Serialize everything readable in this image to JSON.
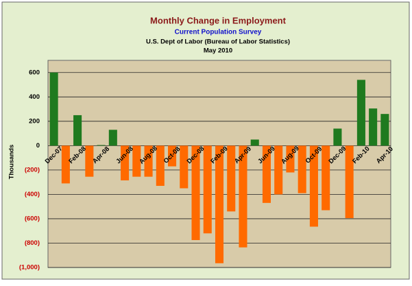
{
  "chart_data": {
    "type": "bar",
    "title": "Monthly Change in Employment",
    "subtitles": [
      "Current Population Survey",
      "U.S. Dept of Labor (Bureau of Labor Statistics)",
      "May 2010"
    ],
    "y_label": "Thousands",
    "categories": [
      "Dec-07",
      null,
      "Feb-08",
      null,
      "Apr-08",
      null,
      "Jun-08",
      null,
      "Aug-08",
      null,
      "Oct-08",
      null,
      "Dec-08",
      null,
      "Feb-09",
      null,
      "Apr-09",
      null,
      "Jun-09",
      null,
      "Aug-09",
      null,
      "Oct-09",
      null,
      "Dec-09",
      null,
      "Feb-10",
      null,
      "Apr-10"
    ],
    "values": [
      600,
      -310,
      250,
      -255,
      5,
      130,
      -285,
      -255,
      -255,
      -330,
      -170,
      -350,
      -775,
      -720,
      -965,
      -540,
      -835,
      50,
      -470,
      -400,
      -220,
      -390,
      -665,
      -530,
      140,
      -595,
      540,
      305,
      260
    ],
    "positive_color": "#1f7a1f",
    "negative_color": "#ff6a00",
    "ylim": [
      -1000,
      700
    ],
    "yticks": [
      {
        "value": -1000,
        "label": "(1,000)"
      },
      {
        "value": -800,
        "label": "(800)"
      },
      {
        "value": -600,
        "label": "(600)"
      },
      {
        "value": -400,
        "label": "(400)"
      },
      {
        "value": -200,
        "label": "(200)"
      },
      0,
      200,
      400,
      600
    ],
    "negative_tick_color": "#cc0000",
    "grid": true
  }
}
